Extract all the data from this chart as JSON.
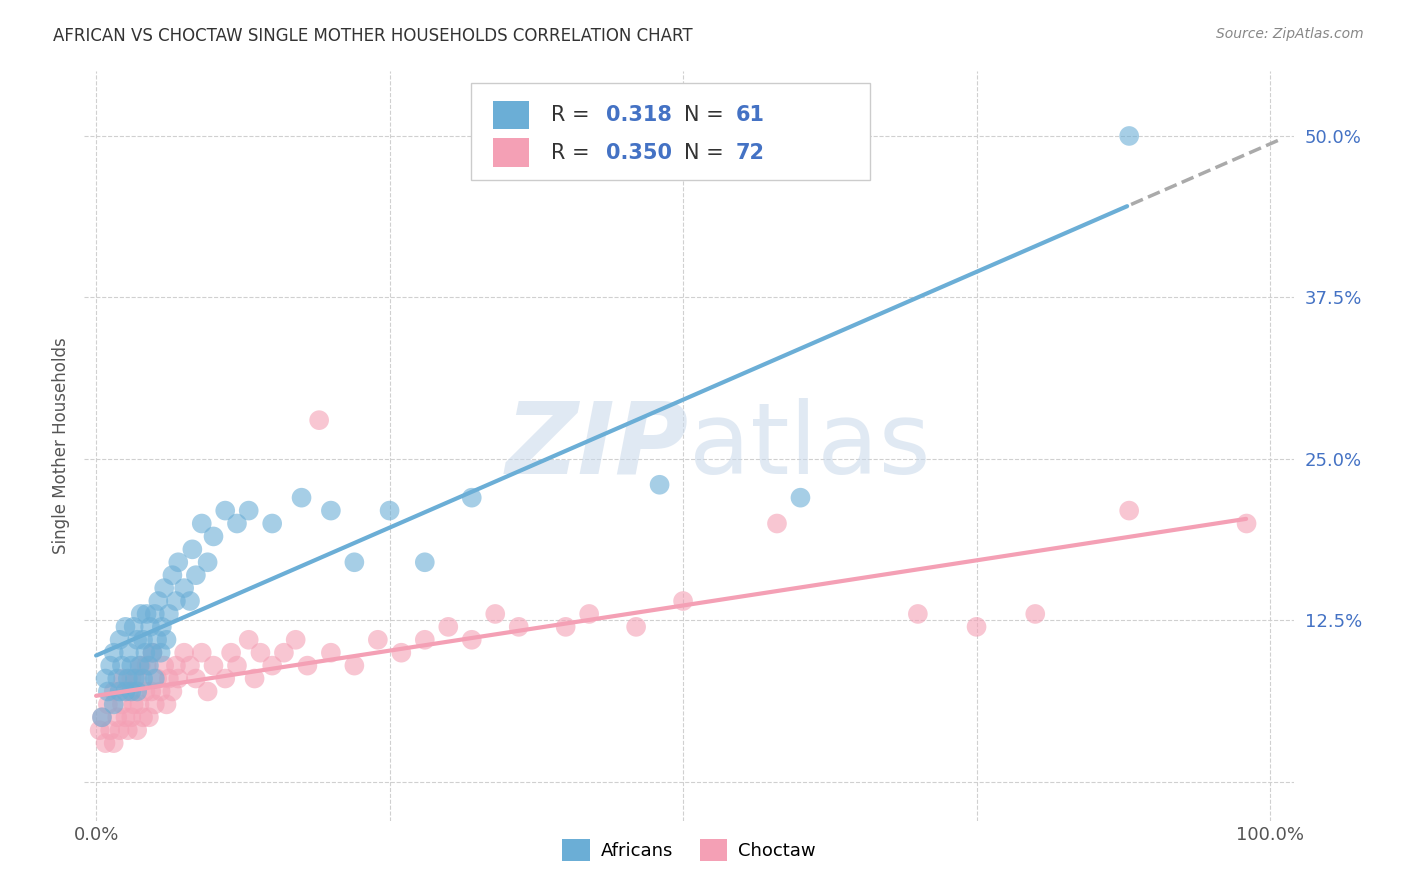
{
  "title": "AFRICAN VS CHOCTAW SINGLE MOTHER HOUSEHOLDS CORRELATION CHART",
  "source": "Source: ZipAtlas.com",
  "ylabel": "Single Mother Households",
  "xlim": [
    -0.01,
    1.02
  ],
  "ylim": [
    -0.03,
    0.55
  ],
  "ytick_positions": [
    0.0,
    0.125,
    0.25,
    0.375,
    0.5
  ],
  "ytick_labels": [
    "",
    "12.5%",
    "25.0%",
    "37.5%",
    "50.0%"
  ],
  "african_color": "#6baed6",
  "choctaw_color": "#f4a0b5",
  "african_R": 0.318,
  "african_N": 61,
  "choctaw_R": 0.35,
  "choctaw_N": 72,
  "watermark_zip": "ZIP",
  "watermark_atlas": "atlas",
  "background_color": "#ffffff",
  "grid_color": "#d0d0d0",
  "blue_text_color": "#4472C4",
  "african_scatter_x": [
    0.005,
    0.008,
    0.01,
    0.012,
    0.015,
    0.015,
    0.018,
    0.02,
    0.02,
    0.022,
    0.025,
    0.025,
    0.027,
    0.028,
    0.03,
    0.03,
    0.032,
    0.033,
    0.035,
    0.035,
    0.037,
    0.038,
    0.04,
    0.04,
    0.042,
    0.043,
    0.045,
    0.046,
    0.048,
    0.05,
    0.05,
    0.052,
    0.053,
    0.055,
    0.056,
    0.058,
    0.06,
    0.062,
    0.065,
    0.068,
    0.07,
    0.075,
    0.08,
    0.082,
    0.085,
    0.09,
    0.095,
    0.1,
    0.11,
    0.12,
    0.13,
    0.15,
    0.175,
    0.2,
    0.22,
    0.25,
    0.28,
    0.32,
    0.48,
    0.6,
    0.88
  ],
  "african_scatter_y": [
    0.05,
    0.08,
    0.07,
    0.09,
    0.06,
    0.1,
    0.08,
    0.07,
    0.11,
    0.09,
    0.07,
    0.12,
    0.08,
    0.1,
    0.07,
    0.09,
    0.12,
    0.08,
    0.07,
    0.11,
    0.09,
    0.13,
    0.08,
    0.11,
    0.1,
    0.13,
    0.09,
    0.12,
    0.1,
    0.08,
    0.13,
    0.11,
    0.14,
    0.1,
    0.12,
    0.15,
    0.11,
    0.13,
    0.16,
    0.14,
    0.17,
    0.15,
    0.14,
    0.18,
    0.16,
    0.2,
    0.17,
    0.19,
    0.21,
    0.2,
    0.21,
    0.2,
    0.22,
    0.21,
    0.17,
    0.21,
    0.17,
    0.22,
    0.23,
    0.22,
    0.5
  ],
  "choctaw_scatter_x": [
    0.003,
    0.005,
    0.008,
    0.01,
    0.012,
    0.015,
    0.015,
    0.018,
    0.02,
    0.022,
    0.023,
    0.025,
    0.027,
    0.028,
    0.03,
    0.03,
    0.032,
    0.035,
    0.035,
    0.037,
    0.038,
    0.04,
    0.042,
    0.043,
    0.045,
    0.047,
    0.048,
    0.05,
    0.052,
    0.055,
    0.058,
    0.06,
    0.062,
    0.065,
    0.068,
    0.07,
    0.075,
    0.08,
    0.085,
    0.09,
    0.095,
    0.1,
    0.11,
    0.115,
    0.12,
    0.13,
    0.135,
    0.14,
    0.15,
    0.16,
    0.17,
    0.18,
    0.19,
    0.2,
    0.22,
    0.24,
    0.26,
    0.28,
    0.3,
    0.32,
    0.34,
    0.36,
    0.4,
    0.42,
    0.46,
    0.5,
    0.58,
    0.7,
    0.75,
    0.8,
    0.88,
    0.98
  ],
  "choctaw_scatter_y": [
    0.04,
    0.05,
    0.03,
    0.06,
    0.04,
    0.03,
    0.07,
    0.05,
    0.04,
    0.06,
    0.08,
    0.05,
    0.04,
    0.07,
    0.05,
    0.08,
    0.06,
    0.04,
    0.08,
    0.06,
    0.09,
    0.05,
    0.07,
    0.09,
    0.05,
    0.07,
    0.1,
    0.06,
    0.08,
    0.07,
    0.09,
    0.06,
    0.08,
    0.07,
    0.09,
    0.08,
    0.1,
    0.09,
    0.08,
    0.1,
    0.07,
    0.09,
    0.08,
    0.1,
    0.09,
    0.11,
    0.08,
    0.1,
    0.09,
    0.1,
    0.11,
    0.09,
    0.28,
    0.1,
    0.09,
    0.11,
    0.1,
    0.11,
    0.12,
    0.11,
    0.13,
    0.12,
    0.12,
    0.13,
    0.12,
    0.14,
    0.2,
    0.13,
    0.12,
    0.13,
    0.21,
    0.2
  ]
}
